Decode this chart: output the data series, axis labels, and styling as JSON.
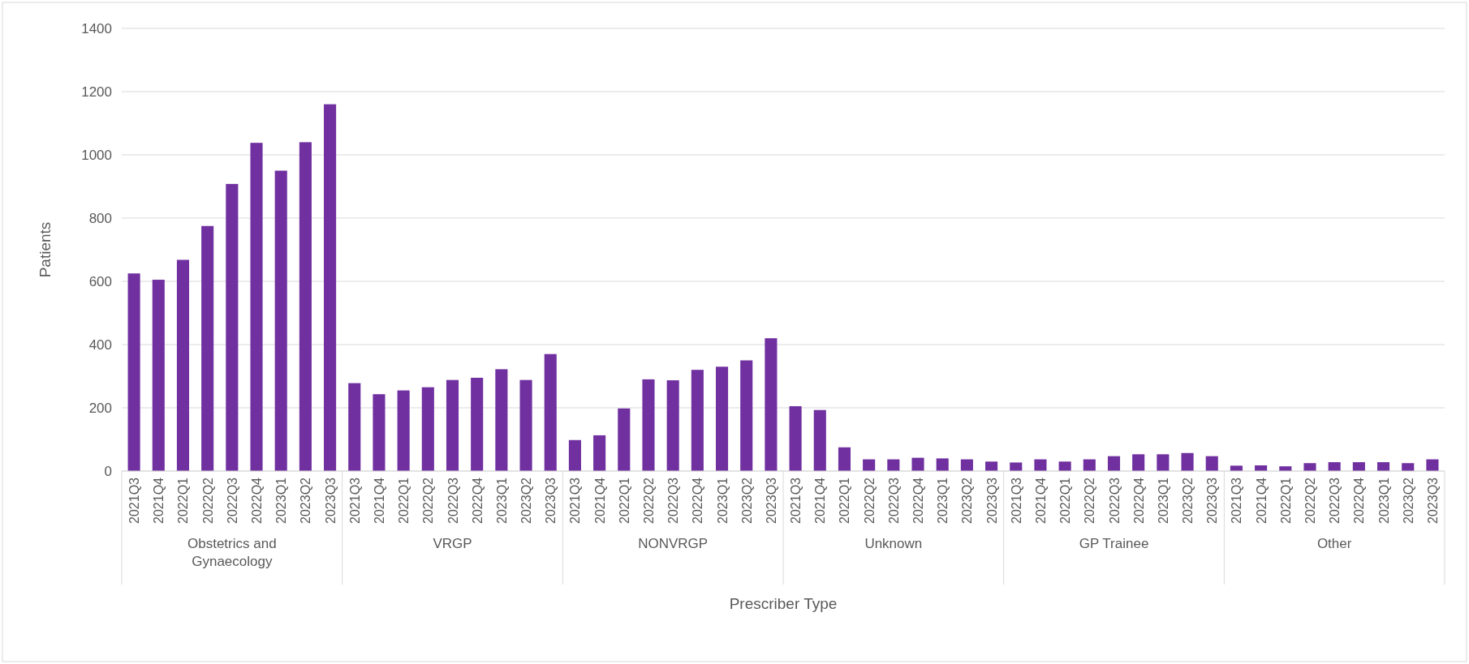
{
  "chart_data": {
    "type": "bar",
    "xlabel": "Prescriber Type",
    "ylabel": "Patients",
    "categories": [
      "2021Q3",
      "2021Q4",
      "2022Q1",
      "2022Q2",
      "2022Q3",
      "2022Q4",
      "2023Q1",
      "2023Q2",
      "2023Q3",
      "2021Q3",
      "2021Q4",
      "2022Q1",
      "2022Q2",
      "2022Q3",
      "2022Q4",
      "2023Q1",
      "2023Q2",
      "2023Q3",
      "2021Q3",
      "2021Q4",
      "2022Q1",
      "2022Q2",
      "2022Q3",
      "2022Q4",
      "2023Q1",
      "2023Q2",
      "2023Q3",
      "2021Q3",
      "2021Q4",
      "2022Q1",
      "2022Q2",
      "2022Q3",
      "2022Q4",
      "2023Q1",
      "2023Q2",
      "2023Q3",
      "2021Q3",
      "2021Q4",
      "2022Q1",
      "2022Q2",
      "2022Q3",
      "2022Q4",
      "2023Q1",
      "2023Q2",
      "2023Q3",
      "2021Q3",
      "2021Q4",
      "2022Q1",
      "2022Q2",
      "2022Q3",
      "2022Q4",
      "2023Q1",
      "2023Q2",
      "2023Q3"
    ],
    "values": [
      625,
      605,
      668,
      775,
      908,
      1038,
      950,
      1040,
      1160,
      278,
      243,
      255,
      265,
      288,
      295,
      322,
      288,
      370,
      98,
      113,
      198,
      290,
      287,
      320,
      330,
      350,
      420,
      205,
      193,
      75,
      37,
      37,
      42,
      40,
      37,
      30,
      27,
      37,
      30,
      37,
      47,
      53,
      53,
      57,
      47,
      17,
      18,
      15,
      25,
      28,
      28,
      28,
      25,
      37
    ],
    "color": "#7030a0",
    "ylim": [
      0,
      1400
    ],
    "yticks": [
      0,
      200,
      400,
      600,
      800,
      1000,
      1200,
      1400
    ],
    "grid": "y",
    "annotations": [
      "Obstetrics and Gynaecology",
      "VRGP",
      "NONVRGP",
      "Unknown",
      "GP Trainee",
      "Other"
    ]
  }
}
